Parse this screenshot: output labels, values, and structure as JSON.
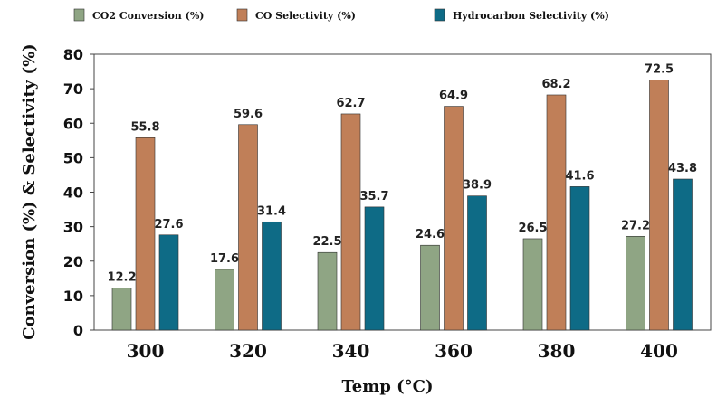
{
  "chart_data": {
    "type": "bar",
    "categories": [
      "300",
      "320",
      "340",
      "360",
      "380",
      "400"
    ],
    "series": [
      {
        "name": "CO2 Conversion (%)",
        "color": "#8fa584",
        "values": [
          12.2,
          17.6,
          22.5,
          24.6,
          26.5,
          27.2
        ]
      },
      {
        "name": "CO Selectivity (%)",
        "color": "#c07f58",
        "values": [
          55.8,
          59.6,
          62.7,
          64.9,
          68.2,
          72.5
        ]
      },
      {
        "name": "Hydrocarbon Selectivity (%)",
        "color": "#0e6b86",
        "values": [
          27.6,
          31.4,
          35.7,
          38.9,
          41.6,
          43.8
        ]
      }
    ],
    "xlabel": "Temp (°C)",
    "ylabel": "Conversion (%) & Selectivity (%)",
    "ylim": [
      0,
      80
    ],
    "yticks": [
      0,
      10,
      20,
      30,
      40,
      50,
      60,
      70,
      80
    ],
    "grid": false,
    "legend_position": "top"
  }
}
